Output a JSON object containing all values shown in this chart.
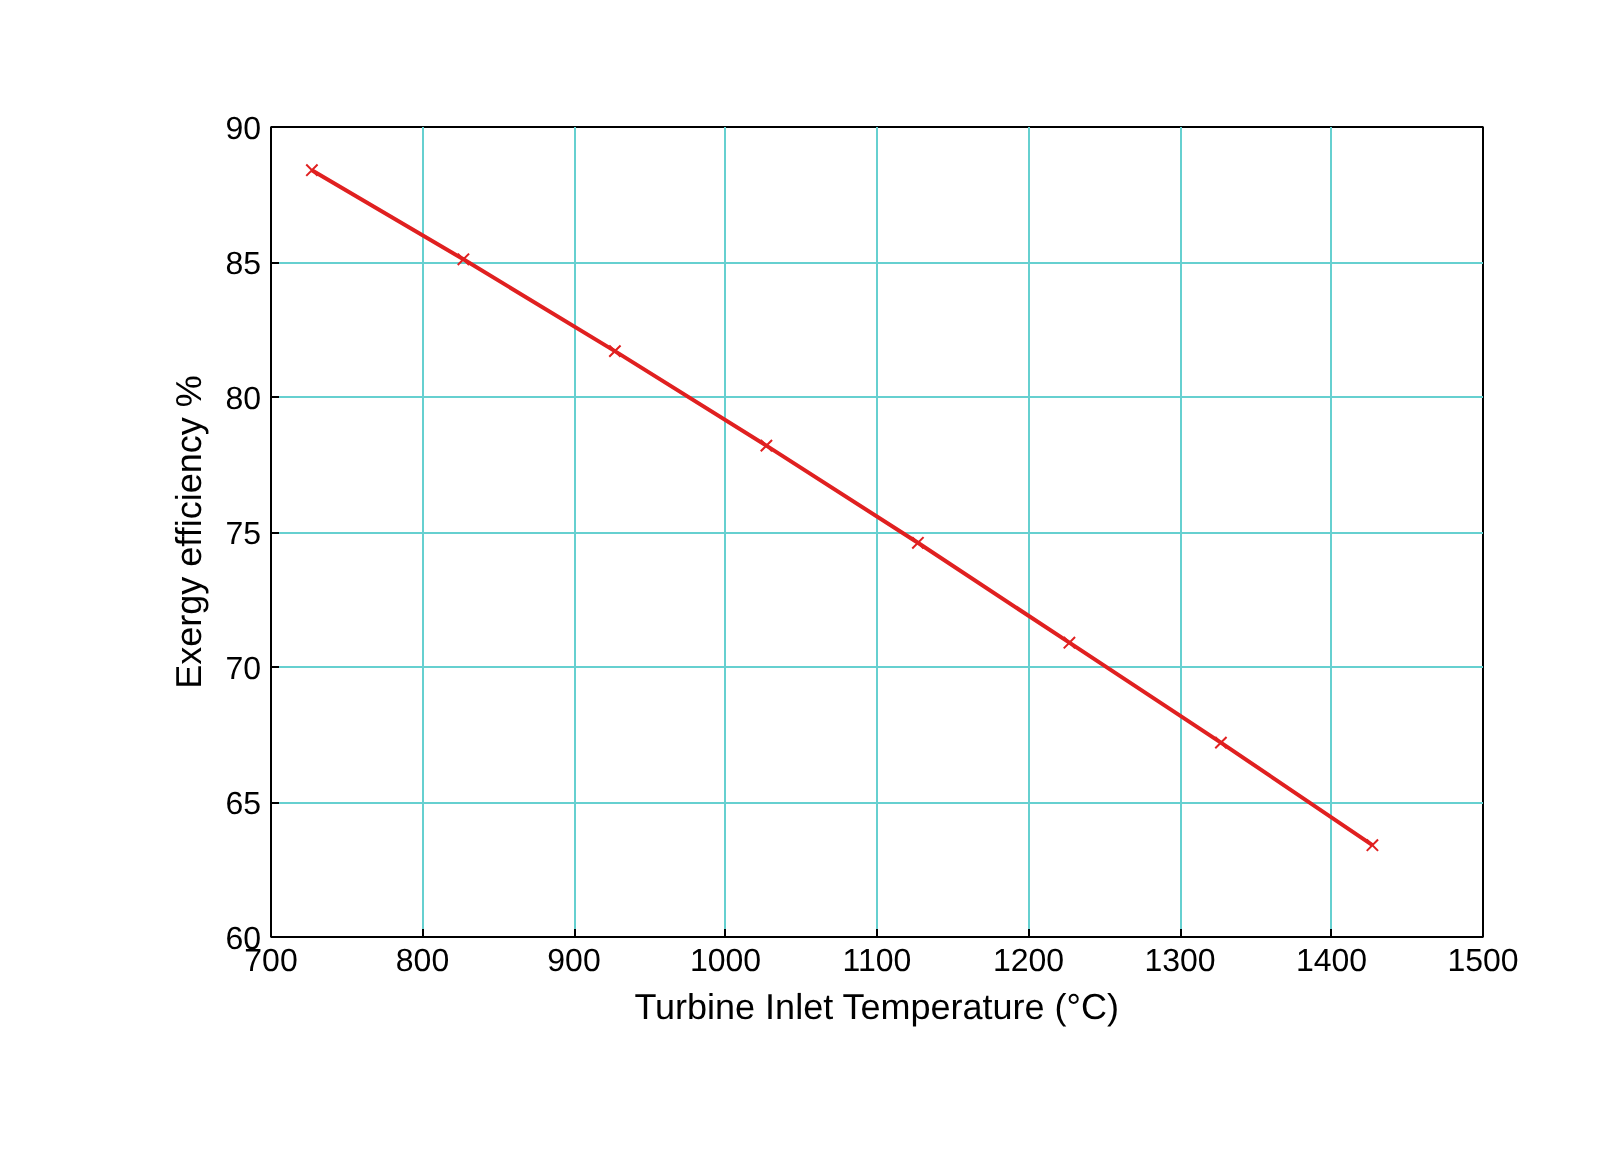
{
  "chart_data": {
    "type": "line",
    "xlabel": "Turbine Inlet Temperature (°C)",
    "ylabel": "Exergy efficiency %",
    "x": [
      727,
      827,
      927,
      1027,
      1127,
      1227,
      1327,
      1427
    ],
    "series": [
      {
        "color": "#e02020",
        "values": [
          88.4,
          85.1,
          81.7,
          78.2,
          74.6,
          70.9,
          67.2,
          63.4
        ]
      }
    ],
    "xlim": [
      700,
      1500
    ],
    "xticks": [
      700,
      800,
      900,
      1000,
      1100,
      1200,
      1300,
      1400,
      1500
    ],
    "ylim": [
      60,
      90
    ],
    "yticks": [
      60,
      65,
      70,
      75,
      80,
      85,
      90
    ],
    "grid": true,
    "marker": "cross",
    "line_style": "solid"
  }
}
